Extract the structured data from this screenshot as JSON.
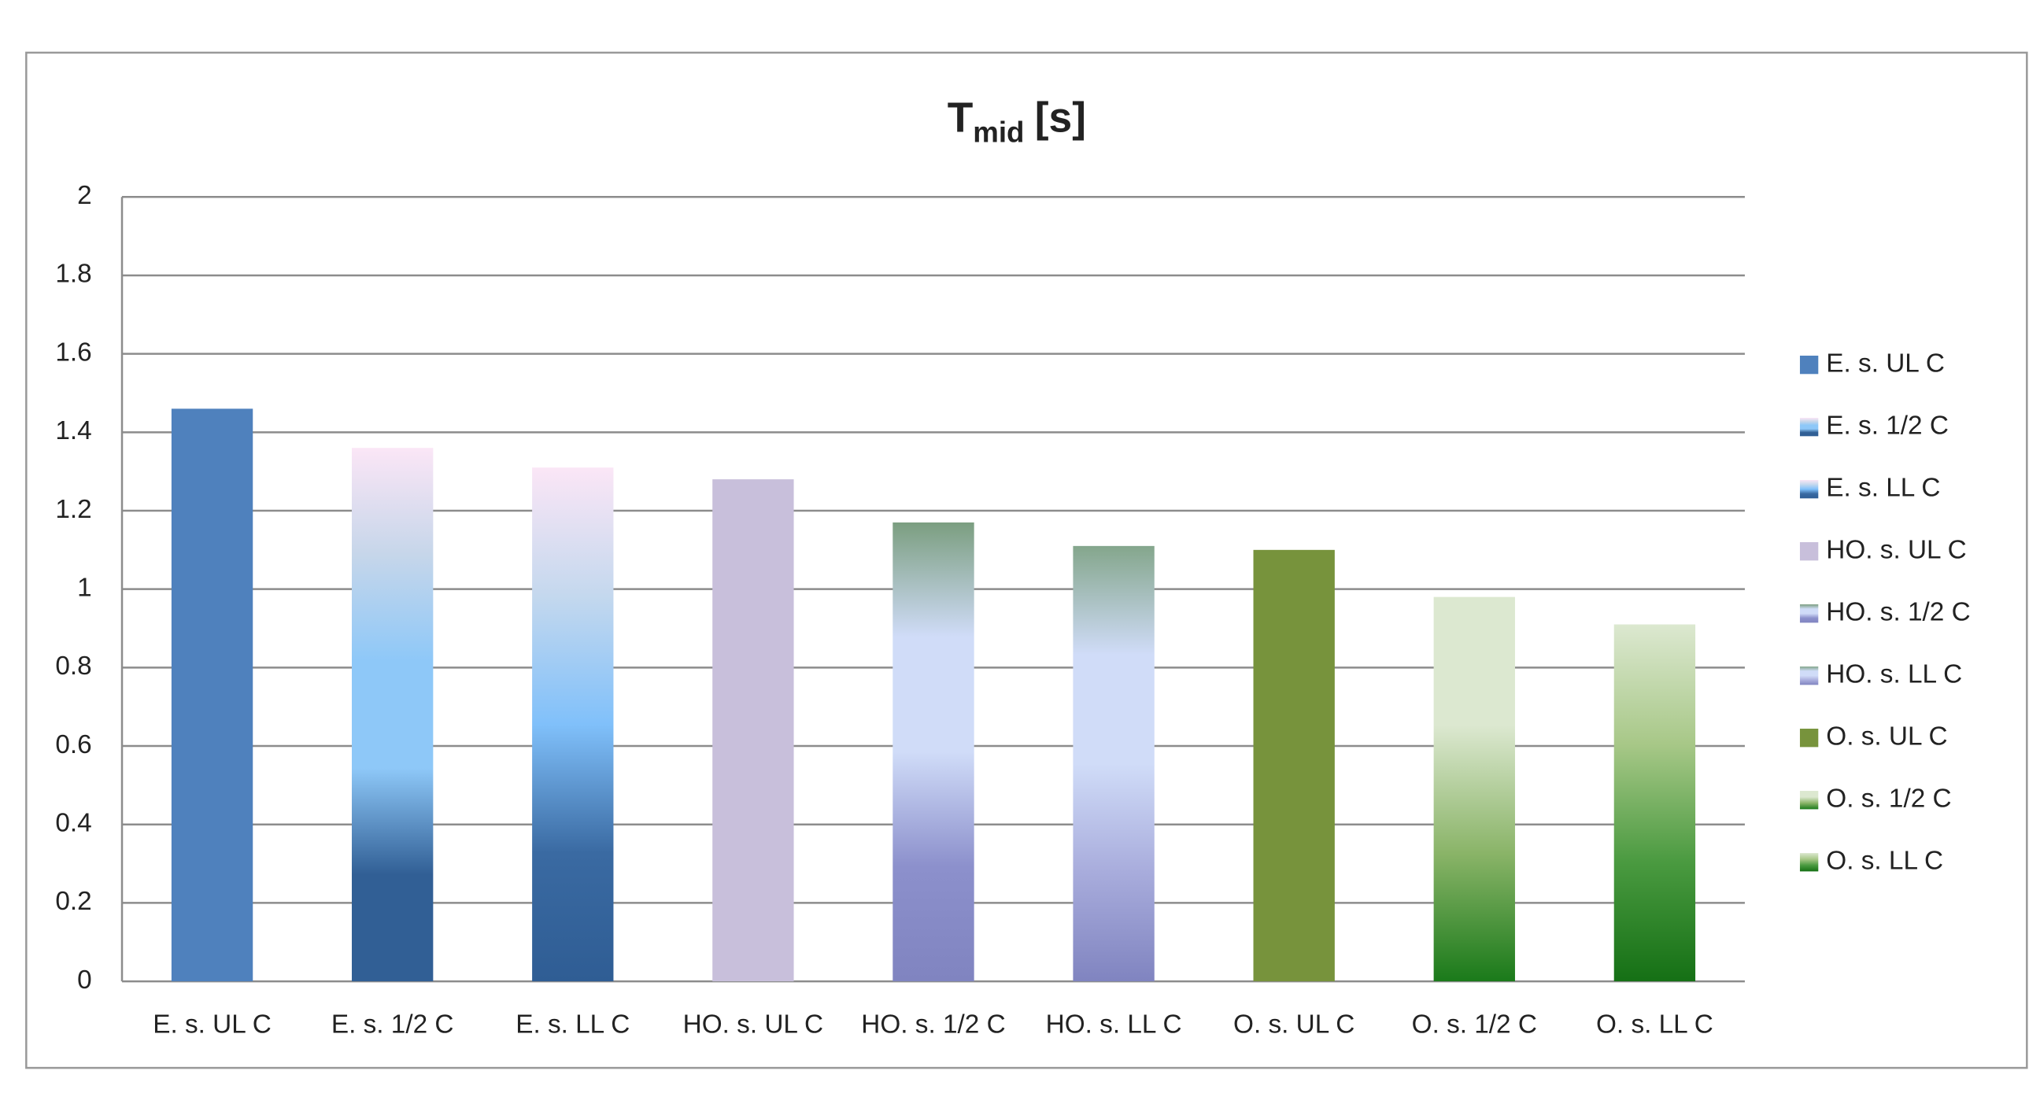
{
  "chart_data": {
    "type": "bar",
    "title": {
      "main": "T",
      "subscript": "mid",
      "suffix": "[s]"
    },
    "categories": [
      "E. s. UL C",
      "E. s. 1/2 C",
      "E. s. LL C",
      "HO. s. UL C",
      "HO. s. 1/2 C",
      "HO. s. LL C",
      "O. s. UL C",
      "O. s. 1/2 C",
      "O. s. LL C"
    ],
    "values": [
      1.46,
      1.36,
      1.31,
      1.28,
      1.17,
      1.11,
      1.1,
      0.98,
      0.91
    ],
    "colors": [
      [
        "#4f81bd"
      ],
      [
        "#fbe6f6",
        "#c6d6ea",
        "#8ec8f8",
        "#8ec8f8",
        "#315f95",
        "#315f95"
      ],
      [
        "#fbe6f6",
        "#c4d8ee",
        "#80c0fa",
        "#3a6aa2",
        "#2f5d94"
      ],
      [
        "#c8bfdb"
      ],
      [
        "#7b9e80",
        "#d0dcf8",
        "#d0dcf8",
        "#8c90cc",
        "#8084c0"
      ],
      [
        "#84a68c",
        "#d0dcf8",
        "#d0dcf8",
        "#a8acdc",
        "#8084c0"
      ],
      [
        "#77933c"
      ],
      [
        "#dce8d0",
        "#dce8d0",
        "#8ab468",
        "#1a7a1a"
      ],
      [
        "#dce8d0",
        "#a8c888",
        "#4a9a40",
        "#157015"
      ]
    ],
    "ylim": [
      0,
      2
    ],
    "yticks": [
      0,
      0.2,
      0.4,
      0.6,
      0.8,
      1,
      1.2,
      1.4,
      1.6,
      1.8,
      2
    ],
    "grid": true,
    "legend": "right"
  }
}
